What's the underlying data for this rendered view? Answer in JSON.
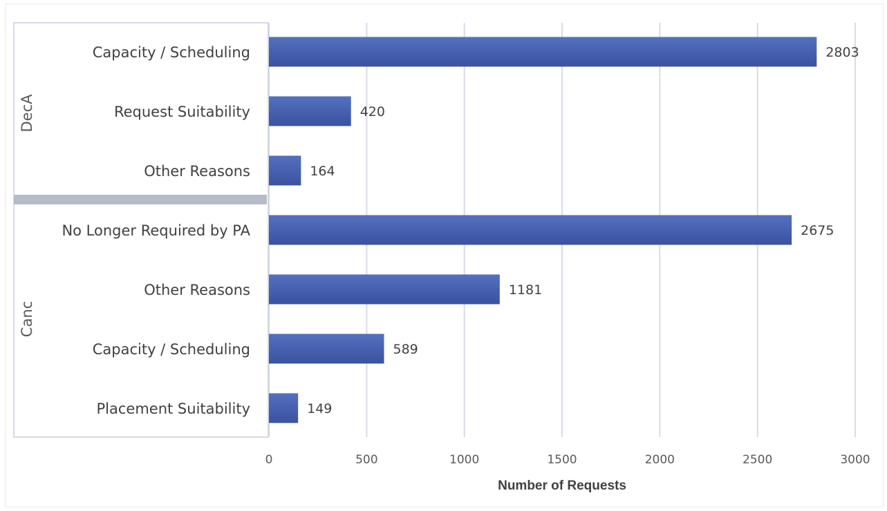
{
  "chart_data": {
    "type": "bar",
    "orientation": "horizontal",
    "xlabel": "Number of Requests",
    "xlim": [
      0,
      3000
    ],
    "xticks": [
      0,
      500,
      1000,
      1500,
      2000,
      2500,
      3000
    ],
    "grid": true,
    "bar_color": "#4159a8",
    "groups": [
      {
        "name": "DecA",
        "items": [
          {
            "category": "Capacity / Scheduling",
            "value": 2803
          },
          {
            "category": "Request Suitability",
            "value": 420
          },
          {
            "category": "Other Reasons",
            "value": 164
          }
        ]
      },
      {
        "name": "Canc",
        "items": [
          {
            "category": "No Longer Required by PA",
            "value": 2675
          },
          {
            "category": "Other Reasons",
            "value": 1181
          },
          {
            "category": "Capacity / Scheduling",
            "value": 589
          },
          {
            "category": "Placement Suitability",
            "value": 149
          }
        ]
      }
    ]
  }
}
